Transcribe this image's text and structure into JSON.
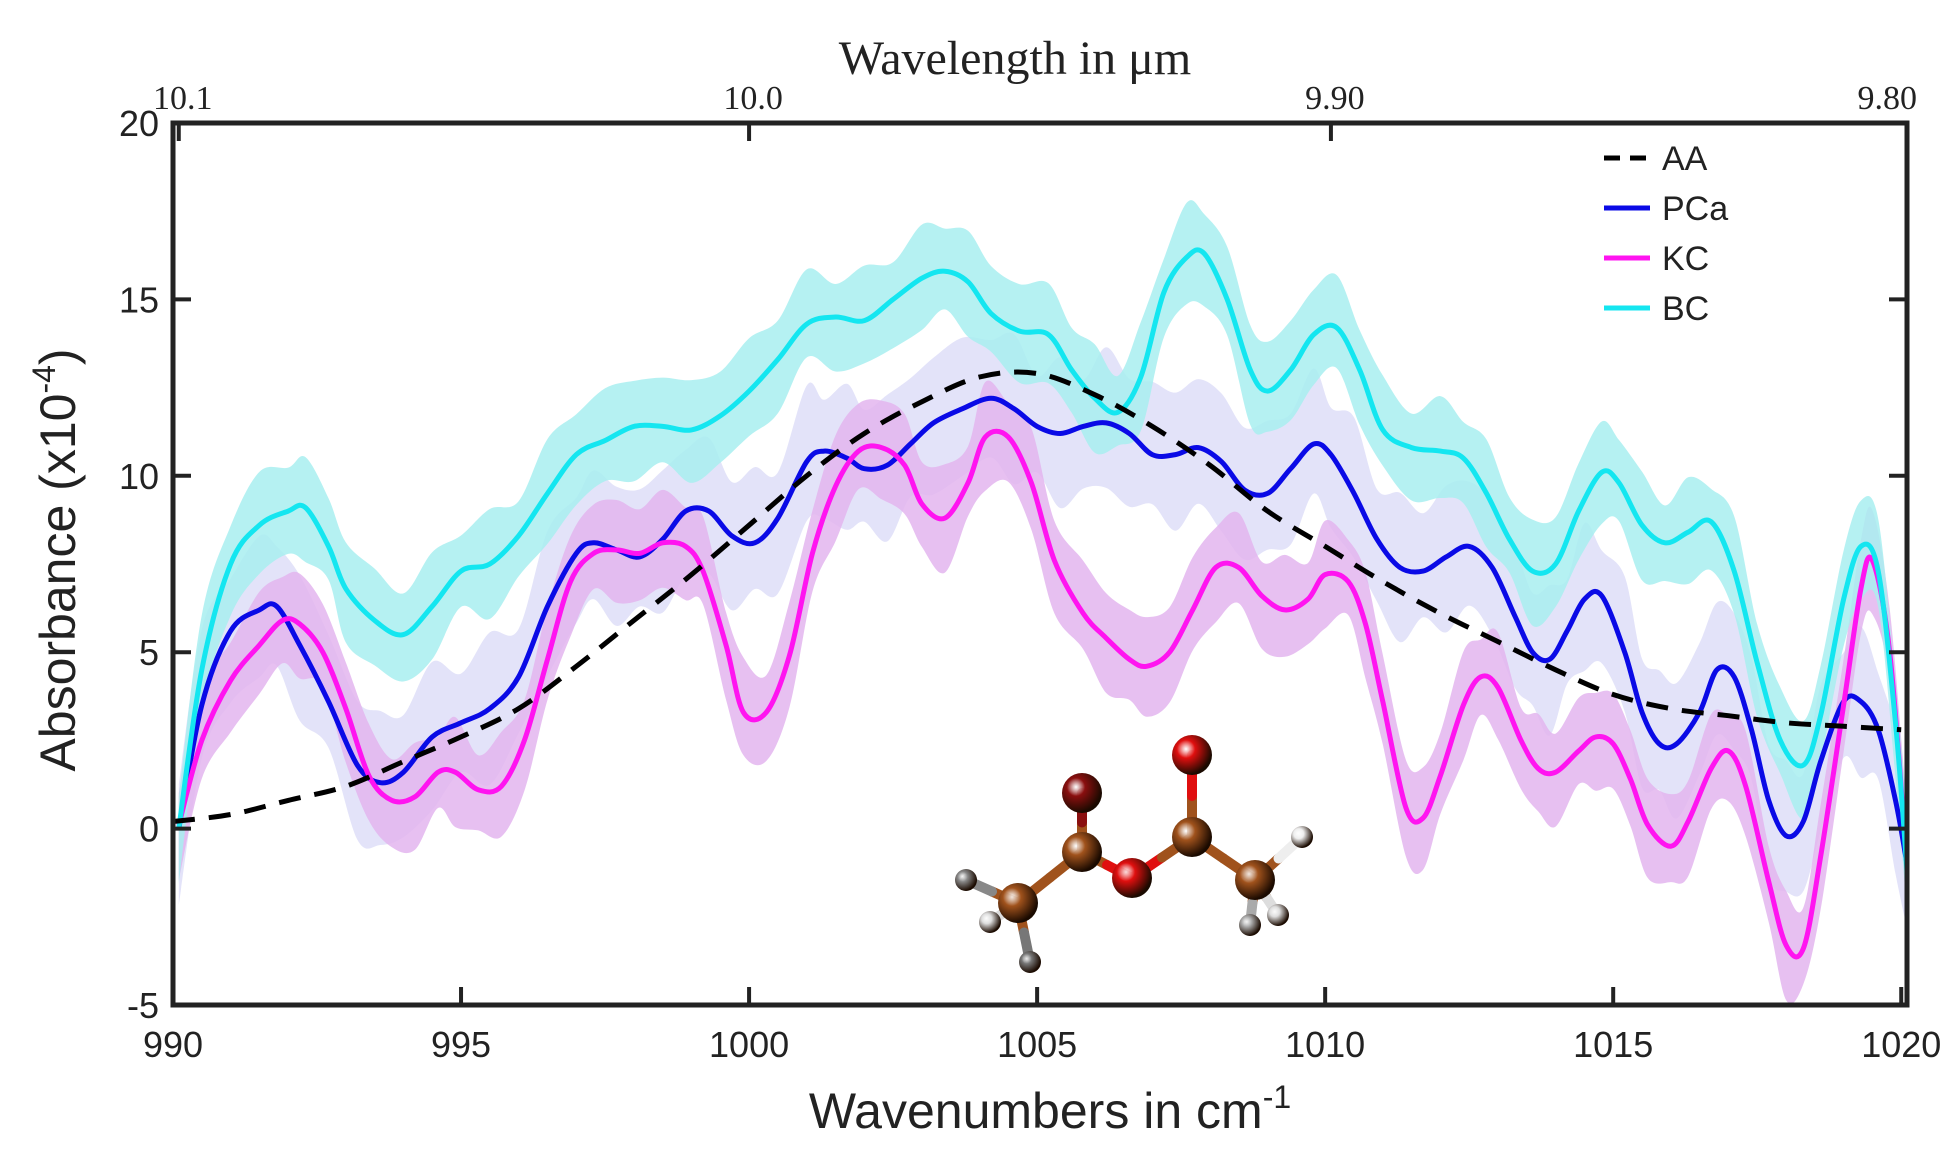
{
  "chart_data": {
    "type": "line",
    "title": "",
    "xlabel": "Wavenumbers in cm",
    "xlabel_superscript": "-1",
    "ylabel": "Absorbance (x10",
    "ylabel_superscript": "-4",
    "ylabel_suffix": ")",
    "top_xlabel": "Wavelength in  μm",
    "xlim": [
      990,
      1020.1
    ],
    "ylim": [
      -5,
      20
    ],
    "xticks": [
      990,
      995,
      1000,
      1005,
      1010,
      1015,
      1020
    ],
    "xtick_labels": [
      "990",
      "995",
      "1000",
      "1005",
      "1010",
      "1015",
      "1020"
    ],
    "yticks": [
      -5,
      0,
      5,
      10,
      15,
      20
    ],
    "ytick_labels": [
      "-5",
      "0",
      "5",
      "10",
      "15",
      "20"
    ],
    "top_ticks": [
      {
        "label": "10.1",
        "wavenumber": 990.1
      },
      {
        "label": "10.0",
        "wavenumber": 1000.0
      },
      {
        "label": "9.90",
        "wavenumber": 1010.1
      },
      {
        "label": "9.80",
        "wavenumber": 1020.4
      }
    ],
    "grid": false,
    "legend_position": "top-right",
    "series": [
      {
        "name": "AA",
        "color": "#000000",
        "style": "dashed",
        "band": null,
        "x": [
          990,
          991,
          992,
          993,
          994,
          995,
          996,
          997,
          998,
          999,
          1000,
          1001,
          1002,
          1003,
          1004,
          1005,
          1006,
          1007,
          1008,
          1009,
          1010,
          1011,
          1012,
          1013,
          1014,
          1015,
          1016,
          1017,
          1018,
          1019,
          1020
        ],
        "y": [
          0.2,
          0.4,
          0.8,
          1.2,
          1.9,
          2.6,
          3.4,
          4.6,
          5.9,
          7.2,
          8.6,
          10.0,
          11.2,
          12.1,
          12.8,
          12.9,
          12.3,
          11.4,
          10.3,
          9.0,
          8.0,
          7.0,
          6.1,
          5.3,
          4.5,
          3.8,
          3.4,
          3.2,
          3.0,
          2.9,
          2.8
        ]
      },
      {
        "name": "PCa",
        "color": "#0a0ae6",
        "style": "solid",
        "band": {
          "color": "#d9d9f7",
          "halfwidth": 1.8
        },
        "x": [
          990.1,
          990.5,
          991,
          991.5,
          991.8,
          992.2,
          992.7,
          993.2,
          993.6,
          994,
          994.5,
          995,
          995.5,
          996,
          996.5,
          997,
          997.3,
          997.7,
          998.1,
          998.5,
          998.9,
          999.3,
          999.7,
          1000.1,
          1000.5,
          1001,
          1001.3,
          1001.7,
          1002,
          1002.4,
          1002.8,
          1003.2,
          1003.7,
          1004.2,
          1004.6,
          1005,
          1005.4,
          1005.8,
          1006.2,
          1006.6,
          1007,
          1007.4,
          1007.8,
          1008.2,
          1008.6,
          1009,
          1009.4,
          1009.8,
          1010.1,
          1010.5,
          1010.9,
          1011.3,
          1011.7,
          1012.1,
          1012.5,
          1012.9,
          1013.3,
          1013.6,
          1013.9,
          1014.2,
          1014.5,
          1014.8,
          1015.2,
          1015.5,
          1015.8,
          1016.1,
          1016.5,
          1016.8,
          1017.1,
          1017.4,
          1017.7,
          1018,
          1018.3,
          1018.6,
          1019,
          1019.3,
          1019.6,
          1019.9,
          1020.1
        ],
        "y": [
          0,
          3.5,
          5.6,
          6.2,
          6.3,
          5.2,
          3.6,
          1.8,
          1.3,
          1.6,
          2.6,
          3.0,
          3.4,
          4.3,
          6.3,
          7.8,
          8.1,
          7.9,
          7.7,
          8.2,
          9.0,
          9.0,
          8.3,
          8.1,
          8.8,
          10.4,
          10.7,
          10.5,
          10.2,
          10.3,
          10.9,
          11.5,
          11.9,
          12.2,
          11.9,
          11.4,
          11.2,
          11.4,
          11.5,
          11.2,
          10.6,
          10.6,
          10.8,
          10.4,
          9.6,
          9.5,
          10.2,
          10.9,
          10.6,
          9.5,
          8.2,
          7.4,
          7.3,
          7.7,
          8.0,
          7.4,
          6.0,
          5.0,
          4.8,
          5.6,
          6.5,
          6.6,
          5.0,
          3.3,
          2.4,
          2.4,
          3.3,
          4.5,
          4.3,
          2.8,
          0.8,
          -0.2,
          0.2,
          1.9,
          3.6,
          3.6,
          2.8,
          0.8,
          -1.0
        ]
      },
      {
        "name": "KC",
        "color": "#ff14f0",
        "style": "solid",
        "band": {
          "color": "#e3b5ef",
          "halfwidth": 1.3
        },
        "x": [
          990.1,
          990.5,
          991,
          991.5,
          991.9,
          992.2,
          992.6,
          993,
          993.4,
          993.8,
          994.2,
          994.6,
          994.9,
          995.3,
          995.7,
          996.1,
          996.5,
          996.9,
          997.3,
          997.7,
          998.1,
          998.5,
          998.9,
          999.2,
          999.6,
          999.9,
          1000.3,
          1000.7,
          1001.1,
          1001.5,
          1001.9,
          1002.3,
          1002.7,
          1003,
          1003.4,
          1003.8,
          1004.1,
          1004.5,
          1004.9,
          1005.3,
          1005.8,
          1006.2,
          1006.6,
          1006.9,
          1007.3,
          1007.7,
          1008.1,
          1008.5,
          1008.9,
          1009.3,
          1009.7,
          1010,
          1010.4,
          1010.7,
          1011,
          1011.4,
          1011.7,
          1012,
          1012.4,
          1012.7,
          1013,
          1013.4,
          1013.7,
          1014,
          1014.4,
          1014.7,
          1015,
          1015.3,
          1015.6,
          1016,
          1016.3,
          1016.7,
          1017,
          1017.3,
          1017.7,
          1018,
          1018.3,
          1018.6,
          1019,
          1019.3,
          1019.5,
          1019.8,
          1020.1
        ],
        "y": [
          0.1,
          2.5,
          4.2,
          5.2,
          5.9,
          5.8,
          5.0,
          3.4,
          1.5,
          0.8,
          0.9,
          1.6,
          1.6,
          1.1,
          1.2,
          2.5,
          4.8,
          7.0,
          7.8,
          7.9,
          7.8,
          8.1,
          8.0,
          7.3,
          5.2,
          3.3,
          3.3,
          4.9,
          7.8,
          9.7,
          10.7,
          10.8,
          10.3,
          9.2,
          8.8,
          9.8,
          11.1,
          11.1,
          9.8,
          7.6,
          6.1,
          5.4,
          4.8,
          4.6,
          5.0,
          6.2,
          7.4,
          7.4,
          6.6,
          6.2,
          6.5,
          7.2,
          7.0,
          5.8,
          3.6,
          0.6,
          0.3,
          1.5,
          3.5,
          4.3,
          4.0,
          2.5,
          1.7,
          1.6,
          2.2,
          2.6,
          2.4,
          1.4,
          0.1,
          -0.5,
          0.2,
          1.7,
          2.2,
          1.2,
          -1.5,
          -3.3,
          -3.4,
          -0.8,
          3.5,
          6.8,
          7.6,
          5.0,
          -1.0
        ]
      },
      {
        "name": "BC",
        "color": "#14e6f0",
        "style": "solid",
        "band": {
          "color": "#a8eff0",
          "halfwidth": 1.3
        },
        "x": [
          990.1,
          990.5,
          991,
          991.5,
          992,
          992.3,
          992.7,
          993,
          993.5,
          994,
          994.5,
          995,
          995.5,
          996,
          996.5,
          997,
          997.5,
          998,
          998.5,
          999,
          999.5,
          1000,
          1000.5,
          1001,
          1001.5,
          1002,
          1002.5,
          1003,
          1003.4,
          1003.8,
          1004.2,
          1004.7,
          1005.2,
          1005.6,
          1006,
          1006.4,
          1006.8,
          1007.2,
          1007.6,
          1007.9,
          1008.3,
          1008.7,
          1009,
          1009.4,
          1009.8,
          1010.2,
          1010.6,
          1011,
          1011.5,
          1012,
          1012.4,
          1012.8,
          1013.2,
          1013.6,
          1014,
          1014.4,
          1014.8,
          1015.1,
          1015.5,
          1015.9,
          1016.3,
          1016.7,
          1017.1,
          1017.5,
          1017.9,
          1018.3,
          1018.6,
          1019,
          1019.3,
          1019.6,
          1019.9,
          1020.1
        ],
        "y": [
          0,
          4.5,
          7.5,
          8.6,
          9.0,
          9.1,
          8.0,
          6.8,
          5.9,
          5.5,
          6.3,
          7.3,
          7.5,
          8.3,
          9.5,
          10.6,
          11.0,
          11.4,
          11.4,
          11.3,
          11.7,
          12.4,
          13.3,
          14.3,
          14.5,
          14.4,
          15.0,
          15.6,
          15.8,
          15.5,
          14.6,
          14.1,
          14.0,
          13.0,
          12.2,
          11.8,
          12.8,
          15.2,
          16.2,
          16.3,
          15.0,
          13.0,
          12.4,
          13.0,
          14.0,
          14.2,
          13.0,
          11.3,
          10.8,
          10.7,
          10.5,
          9.5,
          8.2,
          7.3,
          7.5,
          9.0,
          10.1,
          9.8,
          8.6,
          8.1,
          8.4,
          8.7,
          7.3,
          4.7,
          2.5,
          1.8,
          3.2,
          6.5,
          8.0,
          7.3,
          3.0,
          -1.2
        ]
      }
    ],
    "draw_order": [
      "PCa",
      "KC",
      "BC",
      "AA"
    ],
    "inset": {
      "description": "ball-and-stick molecule (acetic anhydride)",
      "atoms": [
        {
          "id": "C1",
          "element": "C",
          "color": "#a0521c"
        },
        {
          "id": "C2",
          "element": "C",
          "color": "#a0521c"
        },
        {
          "id": "O1",
          "element": "O",
          "color": "#8a0f0f"
        },
        {
          "id": "O2",
          "element": "O",
          "color": "#e00f0f"
        },
        {
          "id": "C3",
          "element": "C",
          "color": "#a0521c"
        },
        {
          "id": "O3",
          "element": "O",
          "color": "#e00f0f"
        },
        {
          "id": "C4",
          "element": "C",
          "color": "#a0521c"
        },
        {
          "id": "H1",
          "element": "H",
          "color": "#888888"
        },
        {
          "id": "H2",
          "element": "H",
          "color": "#dddddd"
        },
        {
          "id": "H3",
          "element": "H",
          "color": "#777777"
        },
        {
          "id": "H4",
          "element": "H",
          "color": "#eeeeee"
        },
        {
          "id": "H5",
          "element": "H",
          "color": "#dddddd"
        },
        {
          "id": "H6",
          "element": "H",
          "color": "#aaaaaa"
        }
      ]
    }
  }
}
